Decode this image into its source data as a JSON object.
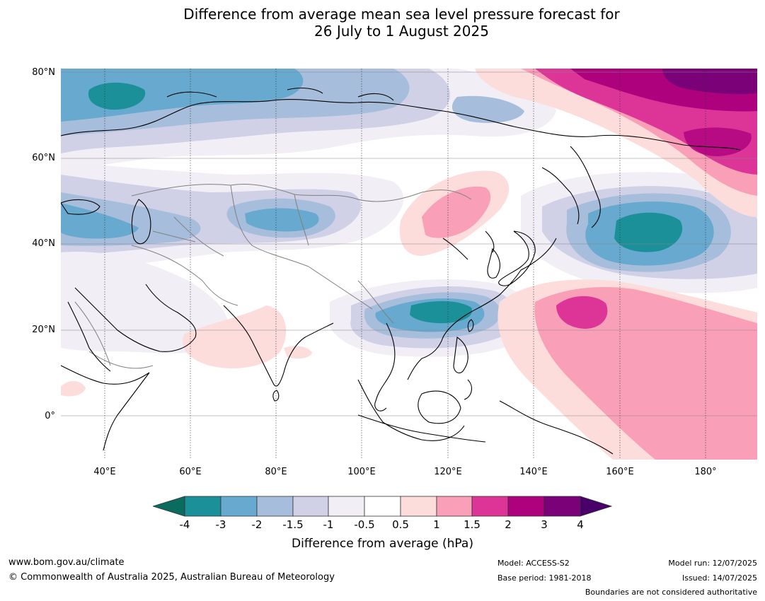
{
  "title": {
    "line1": "Difference from average mean sea level pressure forecast for",
    "line2": "26 July to 1 August 2025"
  },
  "map": {
    "region": "Asia / West Pacific",
    "lat_labels": [
      "80°N",
      "60°N",
      "40°N",
      "20°N",
      "0°"
    ],
    "lon_labels": [
      "40°E",
      "60°E",
      "80°E",
      "100°E",
      "120°E",
      "140°E",
      "160°E",
      "180°"
    ],
    "colors": {
      "teal_dark": "#0c6b5f",
      "teal": "#1b9099",
      "blue": "#67a9cf",
      "blue_light": "#a6bddb",
      "lavender": "#d0d1e6",
      "lavender_pale": "#f1eef6",
      "white": "#ffffff",
      "pink_pale": "#fddcdc",
      "pink": "#f99fb8",
      "magenta": "#dd3497",
      "purple_red": "#ae017e",
      "purple": "#7a0177",
      "purple_dark": "#49006a",
      "land_outline": "#000000",
      "border": "#808080",
      "grid": "#888888"
    }
  },
  "colorbar": {
    "ticks": [
      "-4",
      "-3",
      "-2",
      "-1.5",
      "-1",
      "-0.5",
      "0.5",
      "1",
      "1.5",
      "2",
      "3",
      "4"
    ],
    "label": "Difference from average (hPa)"
  },
  "footer": {
    "website": "www.bom.gov.au/climate",
    "copyright": "© Commonwealth of Australia 2025, Australian Bureau of Meteorology",
    "model": "Model: ACCESS-S2",
    "base_period": "Base period: 1981-2018",
    "model_run": "Model run: 12/07/2025",
    "issued": "Issued: 14/07/2025",
    "disclaimer": "Boundaries are not considered authoritative"
  }
}
